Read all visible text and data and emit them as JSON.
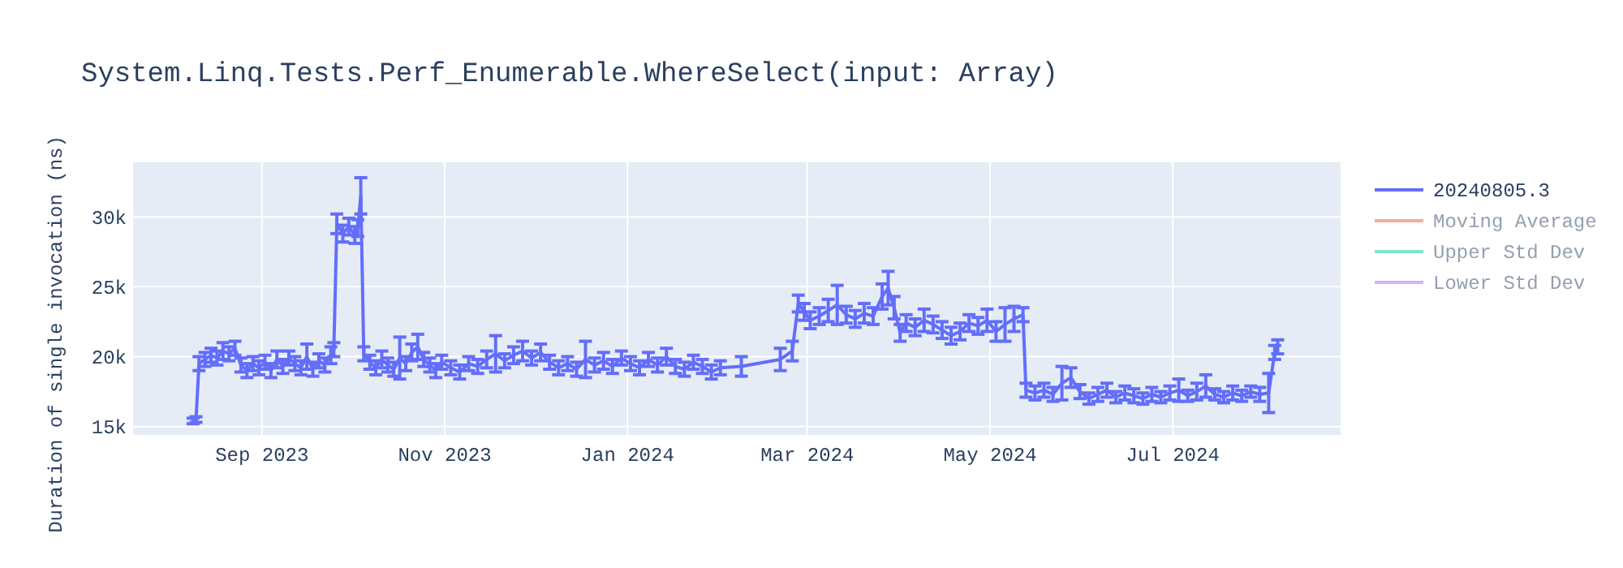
{
  "chart_data": {
    "type": "line",
    "title": "System.Linq.Tests.Perf_Enumerable.WhereSelect(input: Array)",
    "ylabel": "Duration of single invocation (ns)",
    "x": [
      "2023-08-09",
      "2023-08-10",
      "2023-08-11",
      "2023-08-13",
      "2023-08-15",
      "2023-08-17",
      "2023-08-19",
      "2023-08-21",
      "2023-08-23",
      "2023-08-25",
      "2023-08-27",
      "2023-08-29",
      "2023-08-31",
      "2023-09-02",
      "2023-09-04",
      "2023-09-06",
      "2023-09-08",
      "2023-09-10",
      "2023-09-12",
      "2023-09-14",
      "2023-09-16",
      "2023-09-18",
      "2023-09-20",
      "2023-09-22",
      "2023-09-24",
      "2023-09-25",
      "2023-09-26",
      "2023-09-28",
      "2023-09-30",
      "2023-10-02",
      "2023-10-03",
      "2023-10-04",
      "2023-10-05",
      "2023-10-07",
      "2023-10-09",
      "2023-10-11",
      "2023-10-13",
      "2023-10-15",
      "2023-10-17",
      "2023-10-19",
      "2023-10-21",
      "2023-10-23",
      "2023-10-25",
      "2023-10-27",
      "2023-10-29",
      "2023-10-31",
      "2023-11-03",
      "2023-11-06",
      "2023-11-09",
      "2023-11-12",
      "2023-11-15",
      "2023-11-18",
      "2023-11-21",
      "2023-11-24",
      "2023-11-27",
      "2023-11-30",
      "2023-12-03",
      "2023-12-06",
      "2023-12-09",
      "2023-12-12",
      "2023-12-15",
      "2023-12-18",
      "2023-12-21",
      "2023-12-24",
      "2023-12-27",
      "2023-12-30",
      "2024-01-02",
      "2024-01-05",
      "2024-01-08",
      "2024-01-11",
      "2024-01-14",
      "2024-01-17",
      "2024-01-20",
      "2024-01-23",
      "2024-01-26",
      "2024-01-29",
      "2024-02-01",
      "2024-02-08",
      "2024-02-21",
      "2024-02-25",
      "2024-02-27",
      "2024-02-29",
      "2024-03-02",
      "2024-03-05",
      "2024-03-08",
      "2024-03-11",
      "2024-03-14",
      "2024-03-17",
      "2024-03-20",
      "2024-03-23",
      "2024-03-26",
      "2024-03-28",
      "2024-03-30",
      "2024-04-01",
      "2024-04-03",
      "2024-04-06",
      "2024-04-09",
      "2024-04-12",
      "2024-04-15",
      "2024-04-18",
      "2024-04-21",
      "2024-04-24",
      "2024-04-27",
      "2024-04-30",
      "2024-05-03",
      "2024-05-06",
      "2024-05-09",
      "2024-05-12",
      "2024-05-13",
      "2024-05-16",
      "2024-05-19",
      "2024-05-22",
      "2024-05-25",
      "2024-05-28",
      "2024-05-31",
      "2024-06-03",
      "2024-06-06",
      "2024-06-09",
      "2024-06-12",
      "2024-06-15",
      "2024-06-18",
      "2024-06-21",
      "2024-06-24",
      "2024-06-27",
      "2024-06-30",
      "2024-07-03",
      "2024-07-06",
      "2024-07-09",
      "2024-07-12",
      "2024-07-15",
      "2024-07-18",
      "2024-07-21",
      "2024-07-24",
      "2024-07-27",
      "2024-07-30",
      "2024-08-02",
      "2024-08-04",
      "2024-08-05"
    ],
    "series": [
      {
        "name": "20240805.3",
        "color": "#636efa",
        "values": [
          15400,
          15500,
          19500,
          19800,
          20100,
          19900,
          20400,
          20200,
          20600,
          19400,
          19000,
          19500,
          19200,
          19600,
          19000,
          19800,
          19300,
          19900,
          19500,
          19200,
          20000,
          19100,
          19700,
          19400,
          20100,
          20500,
          29500,
          28800,
          29300,
          28700,
          29200,
          31500,
          20200,
          19600,
          19200,
          19800,
          19400,
          19100,
          19900,
          19500,
          20300,
          20700,
          19800,
          19400,
          19000,
          19600,
          19200,
          18900,
          19500,
          19300,
          19800,
          20200,
          19700,
          20100,
          20400,
          19900,
          20300,
          19600,
          19200,
          19500,
          19100,
          19800,
          19400,
          19700,
          19300,
          19900,
          19500,
          19200,
          19800,
          19400,
          20000,
          19300,
          19100,
          19600,
          19300,
          18900,
          19200,
          19300,
          19800,
          20400,
          23800,
          23200,
          22600,
          22900,
          23300,
          23700,
          23000,
          22700,
          23100,
          22900,
          24300,
          24900,
          23500,
          21700,
          22400,
          22100,
          22600,
          22300,
          21900,
          21500,
          21800,
          22400,
          22200,
          22600,
          21800,
          22300,
          22700,
          23000,
          17600,
          17400,
          17600,
          17300,
          18100,
          18500,
          17500,
          17000,
          17300,
          17600,
          17100,
          17400,
          17200,
          17000,
          17300,
          17100,
          17400,
          17600,
          17200,
          17500,
          17900,
          17300,
          17100,
          17400,
          17200,
          17500,
          17300,
          17400,
          20300,
          20700
        ],
        "errors": [
          200,
          200,
          500,
          500,
          500,
          500,
          600,
          500,
          500,
          500,
          500,
          500,
          500,
          500,
          500,
          600,
          500,
          500,
          500,
          500,
          900,
          500,
          500,
          500,
          600,
          500,
          700,
          600,
          600,
          600,
          600,
          1300,
          500,
          500,
          500,
          600,
          500,
          500,
          1500,
          500,
          600,
          900,
          500,
          500,
          500,
          500,
          500,
          500,
          500,
          500,
          600,
          1300,
          500,
          600,
          700,
          500,
          600,
          500,
          500,
          500,
          500,
          1300,
          500,
          600,
          500,
          500,
          500,
          500,
          500,
          500,
          600,
          500,
          500,
          500,
          500,
          500,
          500,
          700,
          800,
          700,
          600,
          600,
          600,
          600,
          800,
          1400,
          600,
          600,
          700,
          600,
          900,
          1200,
          800,
          600,
          600,
          600,
          800,
          600,
          600,
          600,
          600,
          600,
          600,
          800,
          700,
          1200,
          900,
          500,
          500,
          500,
          500,
          500,
          1200,
          700,
          500,
          400,
          500,
          500,
          400,
          500,
          500,
          400,
          500,
          400,
          500,
          800,
          400,
          600,
          800,
          400,
          400,
          500,
          400,
          400,
          500,
          1400,
          500,
          500
        ]
      },
      {
        "name": "Moving Average",
        "color": "#ef553b",
        "values": [
          null,
          null,
          null,
          null,
          null,
          null,
          null,
          null,
          null,
          null,
          null,
          null,
          null,
          null,
          null,
          null,
          null,
          null,
          null,
          null,
          null,
          null,
          null,
          null,
          null,
          null,
          null,
          null,
          null,
          null,
          null,
          null,
          null,
          null,
          null,
          null,
          null,
          null,
          null,
          null,
          null,
          null,
          null,
          null,
          null,
          null,
          null,
          null,
          null,
          null,
          null,
          null,
          null,
          null,
          null,
          null,
          null,
          null,
          null,
          null,
          null,
          null,
          null,
          null,
          null,
          null,
          null,
          null,
          null,
          null,
          null,
          null,
          null,
          null,
          null,
          null,
          null,
          null,
          null,
          null,
          null,
          null,
          null,
          null,
          null,
          null,
          null,
          null,
          null,
          null,
          null,
          null,
          null,
          null,
          null,
          null,
          null,
          null,
          null,
          null,
          null,
          null,
          null,
          null,
          null,
          null,
          null,
          null,
          null,
          null,
          null,
          null,
          null,
          null,
          null,
          null,
          null,
          null,
          null,
          null,
          null,
          null,
          null,
          null,
          null,
          null,
          null,
          null,
          null,
          null,
          null,
          null,
          null,
          null,
          null,
          null,
          null,
          null
        ]
      },
      {
        "name": "Upper Std Dev",
        "color": "#00cc96",
        "values": [
          null,
          null,
          null,
          null,
          null,
          null,
          null,
          null,
          null,
          null,
          null,
          null,
          null,
          null,
          null,
          null,
          null,
          null,
          null,
          null,
          null,
          null,
          null,
          null,
          null,
          null,
          null,
          null,
          null,
          null,
          null,
          null,
          null,
          null,
          null,
          null,
          null,
          null,
          null,
          null,
          null,
          null,
          null,
          null,
          null,
          null,
          null,
          null,
          null,
          null,
          null,
          null,
          null,
          null,
          null,
          null,
          null,
          null,
          null,
          null,
          null,
          null,
          null,
          null,
          null,
          null,
          null,
          null,
          null,
          null,
          null,
          null,
          null,
          null,
          null,
          null,
          null,
          null,
          null,
          null,
          null,
          null,
          null,
          null,
          null,
          null,
          null,
          null,
          null,
          null,
          null,
          null,
          null,
          null,
          null,
          null,
          null,
          null,
          null,
          null,
          null,
          null,
          null,
          null,
          null,
          null,
          null,
          null,
          null,
          null,
          null,
          null,
          null,
          null,
          null,
          null,
          null,
          null,
          null,
          null,
          null,
          null,
          null,
          null,
          null,
          null,
          null,
          null,
          null,
          null,
          null,
          null,
          null,
          null,
          null,
          null,
          null,
          null
        ]
      },
      {
        "name": "Lower Std Dev",
        "color": "#ab63fa",
        "values": [
          null,
          null,
          null,
          null,
          null,
          null,
          null,
          null,
          null,
          null,
          null,
          null,
          null,
          null,
          null,
          null,
          null,
          null,
          null,
          null,
          null,
          null,
          null,
          null,
          null,
          null,
          null,
          null,
          null,
          null,
          null,
          null,
          null,
          null,
          null,
          null,
          null,
          null,
          null,
          null,
          null,
          null,
          null,
          null,
          null,
          null,
          null,
          null,
          null,
          null,
          null,
          null,
          null,
          null,
          null,
          null,
          null,
          null,
          null,
          null,
          null,
          null,
          null,
          null,
          null,
          null,
          null,
          null,
          null,
          null,
          null,
          null,
          null,
          null,
          null,
          null,
          null,
          null,
          null,
          null,
          null,
          null,
          null,
          null,
          null,
          null,
          null,
          null,
          null,
          null,
          null,
          null,
          null,
          null,
          null,
          null,
          null,
          null,
          null,
          null,
          null,
          null,
          null,
          null,
          null,
          null,
          null,
          null,
          null,
          null,
          null,
          null,
          null,
          null,
          null,
          null,
          null,
          null,
          null,
          null,
          null,
          null,
          null,
          null,
          null,
          null,
          null,
          null,
          null,
          null,
          null,
          null,
          null,
          null,
          null,
          null,
          null,
          null
        ]
      }
    ],
    "xlim": [
      "2023-07-20",
      "2024-08-26"
    ],
    "xticks": [
      {
        "value": "2023-09-01",
        "label": "Sep 2023"
      },
      {
        "value": "2023-11-01",
        "label": "Nov 2023"
      },
      {
        "value": "2024-01-01",
        "label": "Jan 2024"
      },
      {
        "value": "2024-03-01",
        "label": "Mar 2024"
      },
      {
        "value": "2024-05-01",
        "label": "May 2024"
      },
      {
        "value": "2024-07-01",
        "label": "Jul 2024"
      }
    ],
    "ylim": [
      14400,
      33900
    ],
    "yticks": [
      {
        "value": 15000,
        "label": "15k"
      },
      {
        "value": 20000,
        "label": "20k"
      },
      {
        "value": 25000,
        "label": "25k"
      },
      {
        "value": 30000,
        "label": "30k"
      }
    ],
    "grid": true,
    "legend": "top right",
    "marker": "none",
    "line_style": "solid"
  }
}
